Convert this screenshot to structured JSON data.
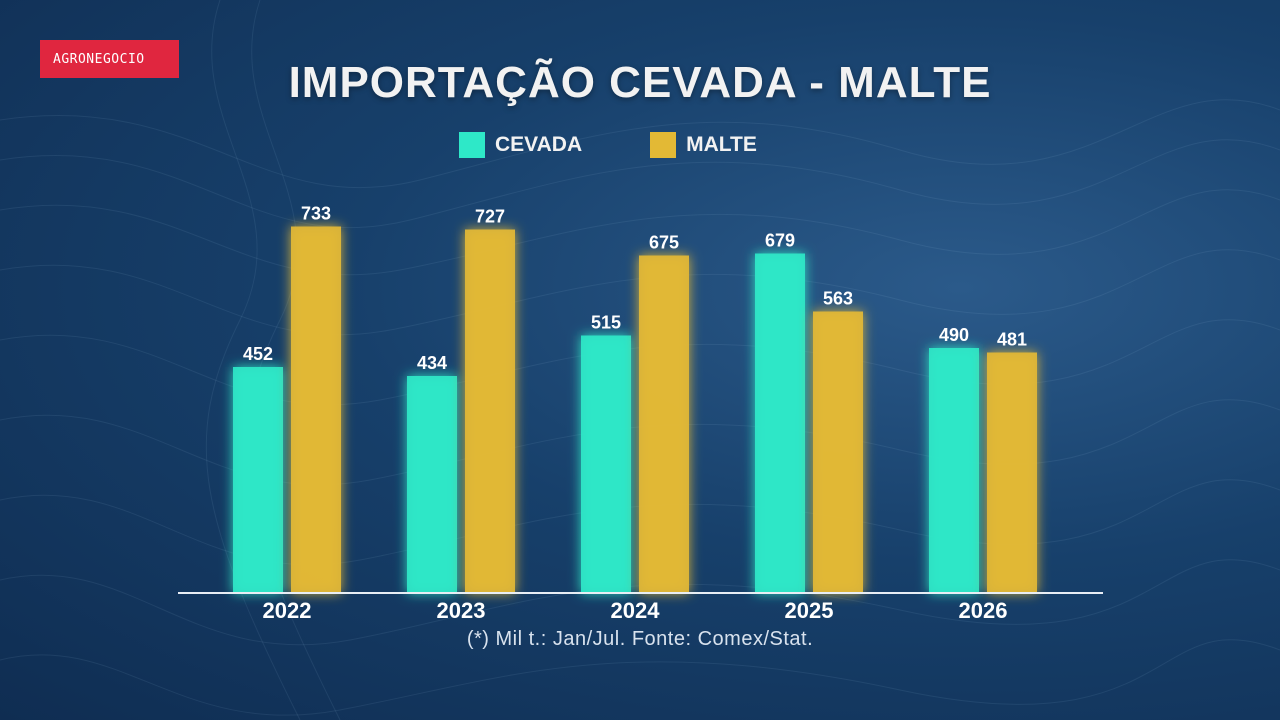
{
  "badge": "AGRONEGOCIO",
  "title": "IMPORTAÇÃO CEVADA - MALTE",
  "footnote": "(*) Mil t.: Jan/Jul. Fonte: Comex/Stat.",
  "colors": {
    "cevada": "#2ee8c8",
    "malte": "#e3b935",
    "badge": "#e0263f",
    "axis": "#e8eef5"
  },
  "chart_data": {
    "type": "bar",
    "title": "IMPORTAÇÃO CEVADA - MALTE",
    "categories": [
      "2022",
      "2023",
      "2024",
      "2025",
      "2026"
    ],
    "series": [
      {
        "name": "CEVADA",
        "values": [
          452,
          434,
          515,
          679,
          490
        ]
      },
      {
        "name": "MALTE",
        "values": [
          733,
          727,
          675,
          563,
          481
        ]
      }
    ],
    "ylim": [
      0,
      800
    ],
    "xlabel": "",
    "ylabel": "",
    "grid": false,
    "legend": "top"
  }
}
